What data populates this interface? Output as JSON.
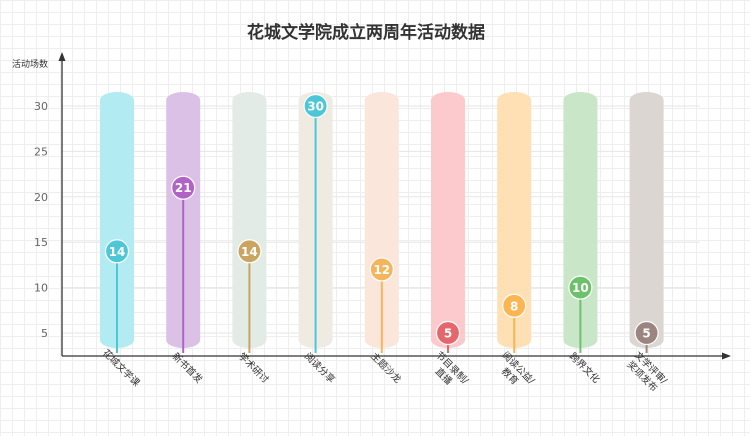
{
  "chart_data": {
    "type": "bar",
    "title": "花城文学院成立两周年活动数据",
    "ylabel": "活动场数",
    "xlabel": "",
    "ylim": [
      0,
      33
    ],
    "yticks": [
      5,
      10,
      15,
      20,
      25,
      30
    ],
    "grid": true,
    "categories": [
      "花城文学课",
      "新书首发",
      "学术研讨",
      "阅读分享",
      "主题沙龙",
      "节目录制/直播",
      "阅读公益/教育",
      "跨界文化",
      "文学评审/奖项发布"
    ],
    "category_lines": [
      [
        "花城文学课"
      ],
      [
        "新书首发"
      ],
      [
        "学术研讨"
      ],
      [
        "阅读分享"
      ],
      [
        "主题沙龙"
      ],
      [
        "节目录制/",
        "直播"
      ],
      [
        "阅读公益/",
        "教育"
      ],
      [
        "跨界文化"
      ],
      [
        "文学评审/",
        "奖项发布"
      ]
    ],
    "values": [
      14,
      21,
      14,
      30,
      12,
      5,
      8,
      10,
      5
    ],
    "colors": {
      "pillar": [
        "#b3ebf2",
        "#dcc1e6",
        "#e2ebe6",
        "#efebe3",
        "#fae6db",
        "#fccacc",
        "#fee0b4",
        "#c9e6c9",
        "#dcd6d3"
      ],
      "marker": [
        "#4dc6d8",
        "#b062c6",
        "#caa562",
        "#4dc6d8",
        "#f5b55c",
        "#e5666c",
        "#fcb551",
        "#6bc26b",
        "#9c8480"
      ]
    }
  }
}
